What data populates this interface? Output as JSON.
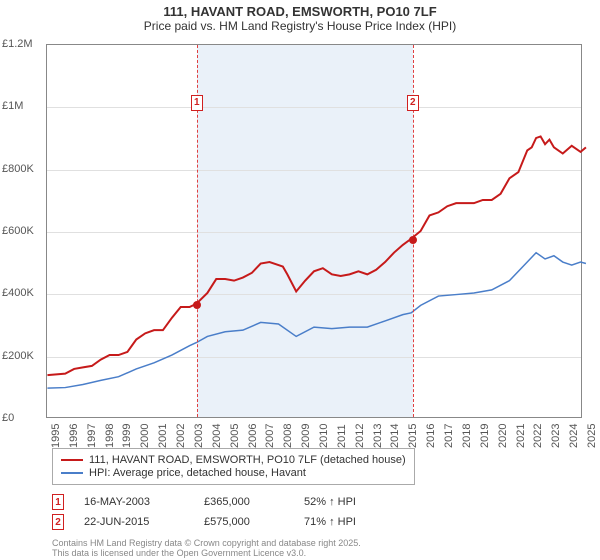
{
  "title": "111, HAVANT ROAD, EMSWORTH, PO10 7LF",
  "subtitle": "Price paid vs. HM Land Registry's House Price Index (HPI)",
  "chart": {
    "type": "line",
    "background_color": "#ffffff",
    "grid_color": "#e0e0e0",
    "shaded_color": "#eaf1f9",
    "x_years": [
      1995,
      1996,
      1997,
      1998,
      1999,
      2000,
      2001,
      2002,
      2003,
      2004,
      2005,
      2006,
      2007,
      2008,
      2009,
      2010,
      2011,
      2012,
      2013,
      2014,
      2015,
      2016,
      2017,
      2018,
      2019,
      2020,
      2021,
      2022,
      2023,
      2024,
      2025
    ],
    "shaded_start_year": 2003.38,
    "shaded_end_year": 2015.47,
    "y": {
      "min": 0,
      "max": 1200000,
      "tick_step": 200000,
      "labels": [
        "£0",
        "£200K",
        "£400K",
        "£600K",
        "£800K",
        "£1M",
        "£1.2M"
      ],
      "label_fontsize": 11
    },
    "series": [
      {
        "id": "property",
        "label": "111, HAVANT ROAD, EMSWORTH, PO10 7LF (detached house)",
        "color": "#c61a1a",
        "line_width": 2,
        "points": [
          {
            "x": 1995.0,
            "y": 135000
          },
          {
            "x": 1996.0,
            "y": 140000
          },
          {
            "x": 1996.5,
            "y": 155000
          },
          {
            "x": 1997.0,
            "y": 160000
          },
          {
            "x": 1997.5,
            "y": 165000
          },
          {
            "x": 1998.0,
            "y": 185000
          },
          {
            "x": 1998.5,
            "y": 200000
          },
          {
            "x": 1999.0,
            "y": 200000
          },
          {
            "x": 1999.5,
            "y": 210000
          },
          {
            "x": 2000.0,
            "y": 250000
          },
          {
            "x": 2000.5,
            "y": 270000
          },
          {
            "x": 2001.0,
            "y": 280000
          },
          {
            "x": 2001.5,
            "y": 280000
          },
          {
            "x": 2002.0,
            "y": 320000
          },
          {
            "x": 2002.5,
            "y": 355000
          },
          {
            "x": 2003.0,
            "y": 355000
          },
          {
            "x": 2003.38,
            "y": 365000
          },
          {
            "x": 2004.0,
            "y": 400000
          },
          {
            "x": 2004.5,
            "y": 445000
          },
          {
            "x": 2005.0,
            "y": 445000
          },
          {
            "x": 2005.5,
            "y": 440000
          },
          {
            "x": 2006.0,
            "y": 450000
          },
          {
            "x": 2006.5,
            "y": 465000
          },
          {
            "x": 2007.0,
            "y": 495000
          },
          {
            "x": 2007.5,
            "y": 500000
          },
          {
            "x": 2008.0,
            "y": 490000
          },
          {
            "x": 2008.25,
            "y": 485000
          },
          {
            "x": 2008.5,
            "y": 460000
          },
          {
            "x": 2009.0,
            "y": 405000
          },
          {
            "x": 2009.5,
            "y": 440000
          },
          {
            "x": 2010.0,
            "y": 470000
          },
          {
            "x": 2010.5,
            "y": 480000
          },
          {
            "x": 2011.0,
            "y": 460000
          },
          {
            "x": 2011.5,
            "y": 455000
          },
          {
            "x": 2012.0,
            "y": 460000
          },
          {
            "x": 2012.5,
            "y": 470000
          },
          {
            "x": 2013.0,
            "y": 460000
          },
          {
            "x": 2013.5,
            "y": 475000
          },
          {
            "x": 2014.0,
            "y": 500000
          },
          {
            "x": 2014.5,
            "y": 530000
          },
          {
            "x": 2015.0,
            "y": 555000
          },
          {
            "x": 2015.47,
            "y": 575000
          },
          {
            "x": 2016.0,
            "y": 600000
          },
          {
            "x": 2016.5,
            "y": 650000
          },
          {
            "x": 2017.0,
            "y": 660000
          },
          {
            "x": 2017.5,
            "y": 680000
          },
          {
            "x": 2018.0,
            "y": 690000
          },
          {
            "x": 2018.5,
            "y": 690000
          },
          {
            "x": 2019.0,
            "y": 690000
          },
          {
            "x": 2019.5,
            "y": 700000
          },
          {
            "x": 2020.0,
            "y": 700000
          },
          {
            "x": 2020.5,
            "y": 720000
          },
          {
            "x": 2021.0,
            "y": 770000
          },
          {
            "x": 2021.5,
            "y": 790000
          },
          {
            "x": 2022.0,
            "y": 860000
          },
          {
            "x": 2022.25,
            "y": 870000
          },
          {
            "x": 2022.5,
            "y": 900000
          },
          {
            "x": 2022.75,
            "y": 905000
          },
          {
            "x": 2023.0,
            "y": 880000
          },
          {
            "x": 2023.25,
            "y": 895000
          },
          {
            "x": 2023.5,
            "y": 870000
          },
          {
            "x": 2024.0,
            "y": 850000
          },
          {
            "x": 2024.5,
            "y": 875000
          },
          {
            "x": 2025.0,
            "y": 855000
          },
          {
            "x": 2025.3,
            "y": 870000
          }
        ]
      },
      {
        "id": "hpi",
        "label": "HPI: Average price, detached house, Havant",
        "color": "#4a7ec9",
        "line_width": 1.5,
        "points": [
          {
            "x": 1995.0,
            "y": 93000
          },
          {
            "x": 1996.0,
            "y": 95000
          },
          {
            "x": 1997.0,
            "y": 105000
          },
          {
            "x": 1998.0,
            "y": 118000
          },
          {
            "x": 1999.0,
            "y": 130000
          },
          {
            "x": 2000.0,
            "y": 155000
          },
          {
            "x": 2001.0,
            "y": 175000
          },
          {
            "x": 2002.0,
            "y": 200000
          },
          {
            "x": 2003.0,
            "y": 230000
          },
          {
            "x": 2003.38,
            "y": 240000
          },
          {
            "x": 2004.0,
            "y": 260000
          },
          {
            "x": 2005.0,
            "y": 275000
          },
          {
            "x": 2006.0,
            "y": 280000
          },
          {
            "x": 2007.0,
            "y": 305000
          },
          {
            "x": 2008.0,
            "y": 300000
          },
          {
            "x": 2009.0,
            "y": 260000
          },
          {
            "x": 2010.0,
            "y": 290000
          },
          {
            "x": 2011.0,
            "y": 285000
          },
          {
            "x": 2012.0,
            "y": 290000
          },
          {
            "x": 2013.0,
            "y": 290000
          },
          {
            "x": 2014.0,
            "y": 310000
          },
          {
            "x": 2015.0,
            "y": 330000
          },
          {
            "x": 2015.47,
            "y": 336000
          },
          {
            "x": 2016.0,
            "y": 360000
          },
          {
            "x": 2017.0,
            "y": 390000
          },
          {
            "x": 2018.0,
            "y": 395000
          },
          {
            "x": 2019.0,
            "y": 400000
          },
          {
            "x": 2020.0,
            "y": 410000
          },
          {
            "x": 2021.0,
            "y": 440000
          },
          {
            "x": 2022.0,
            "y": 500000
          },
          {
            "x": 2022.5,
            "y": 530000
          },
          {
            "x": 2023.0,
            "y": 510000
          },
          {
            "x": 2023.5,
            "y": 520000
          },
          {
            "x": 2024.0,
            "y": 500000
          },
          {
            "x": 2024.5,
            "y": 490000
          },
          {
            "x": 2025.0,
            "y": 500000
          },
          {
            "x": 2025.3,
            "y": 495000
          }
        ]
      }
    ],
    "sale_markers": [
      {
        "n": "1",
        "year": 2003.38,
        "top_offset": 50,
        "dot_year": 2003.38,
        "dot_value": 365000
      },
      {
        "n": "2",
        "year": 2015.47,
        "top_offset": 50,
        "dot_year": 2015.47,
        "dot_value": 575000
      }
    ],
    "marker_border_color": "#d02020",
    "vline_color": "#e04040"
  },
  "legend": {
    "items": [
      {
        "label": "111, HAVANT ROAD, EMSWORTH, PO10 7LF (detached house)",
        "color": "#c61a1a"
      },
      {
        "label": "HPI: Average price, detached house, Havant",
        "color": "#4a7ec9"
      }
    ]
  },
  "sales": [
    {
      "n": "1",
      "date": "16-MAY-2003",
      "price": "£365,000",
      "pct": "52% ↑ HPI"
    },
    {
      "n": "2",
      "date": "22-JUN-2015",
      "price": "£575,000",
      "pct": "71% ↑ HPI"
    }
  ],
  "attribution": {
    "line1": "Contains HM Land Registry data © Crown copyright and database right 2025.",
    "line2": "This data is licensed under the Open Government Licence v3.0."
  }
}
